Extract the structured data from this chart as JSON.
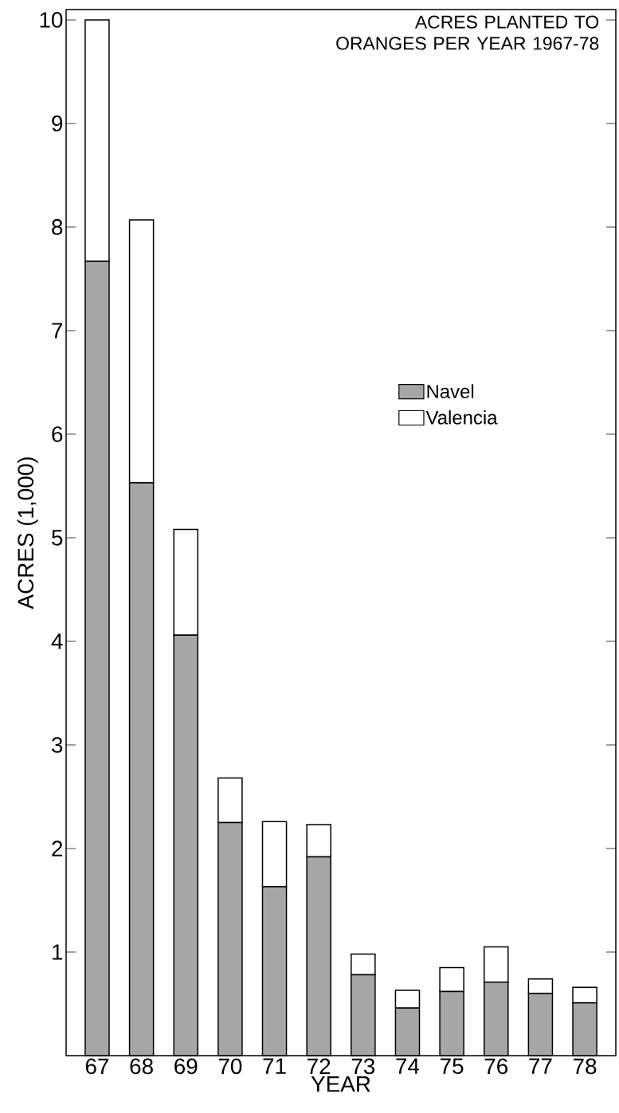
{
  "chart_data": {
    "type": "bar",
    "stacked": true,
    "title": "ACRES PLANTED TO ORANGES PER YEAR 1967-78",
    "xlabel": "YEAR",
    "ylabel": "ACRES (1,000)",
    "categories": [
      "67",
      "68",
      "69",
      "70",
      "71",
      "72",
      "73",
      "74",
      "75",
      "76",
      "77",
      "78"
    ],
    "series": [
      {
        "name": "Navel",
        "color": "#a6a6a6",
        "values": [
          7.67,
          5.53,
          4.06,
          2.25,
          1.63,
          1.92,
          0.78,
          0.46,
          0.62,
          0.71,
          0.6,
          0.51
        ]
      },
      {
        "name": "Valencia",
        "color": "#ffffff",
        "values": [
          2.33,
          2.54,
          1.02,
          0.43,
          0.63,
          0.31,
          0.2,
          0.17,
          0.23,
          0.34,
          0.14,
          0.15
        ]
      }
    ],
    "ylim": [
      0,
      10.1
    ],
    "yticks": [
      1,
      2,
      3,
      4,
      5,
      6,
      7,
      8,
      9,
      10
    ],
    "grid": false,
    "legend": "right"
  }
}
